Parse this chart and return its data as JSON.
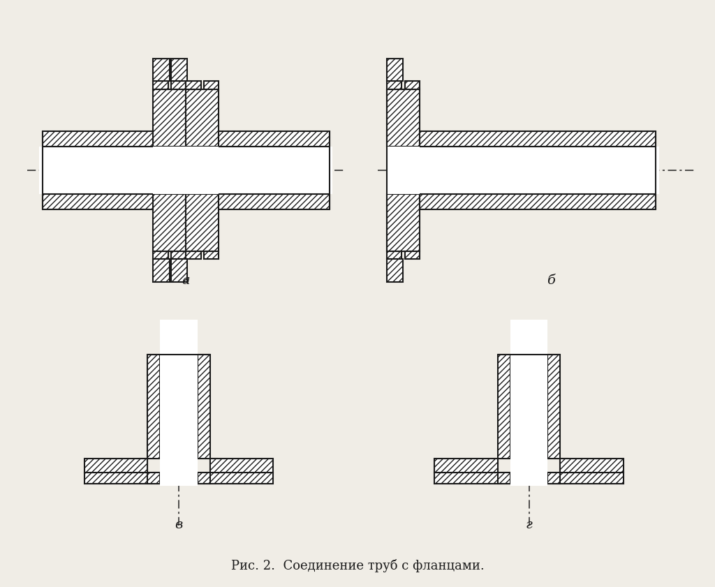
{
  "title": "Рис. 2.  Соединение труб с фланцами.",
  "title_fontsize": 13,
  "bg_color": "#f0ede6",
  "line_color": "#1a1a1a",
  "label_a": "а",
  "label_b": "б",
  "label_v": "в",
  "label_g": "г",
  "lw": 1.5
}
